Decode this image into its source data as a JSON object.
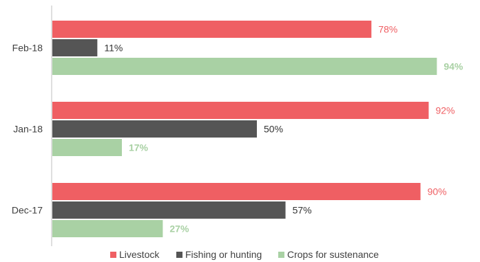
{
  "chart_data": {
    "type": "bar",
    "orientation": "horizontal",
    "categories": [
      "Feb-18",
      "Jan-18",
      "Dec-17"
    ],
    "series": [
      {
        "name": "Livestock",
        "values": [
          78,
          92,
          90
        ],
        "color": "#ef5f63"
      },
      {
        "name": "Fishing or hunting",
        "values": [
          11,
          50,
          57
        ],
        "color": "#555555"
      },
      {
        "name": "Crops for sustenance",
        "values": [
          94,
          17,
          27
        ],
        "color": "#a9d1a4"
      }
    ],
    "value_suffix": "%",
    "xlim": [
      0,
      100
    ],
    "grid": false,
    "legend_position": "bottom",
    "title": "",
    "xlabel": "",
    "ylabel": ""
  }
}
